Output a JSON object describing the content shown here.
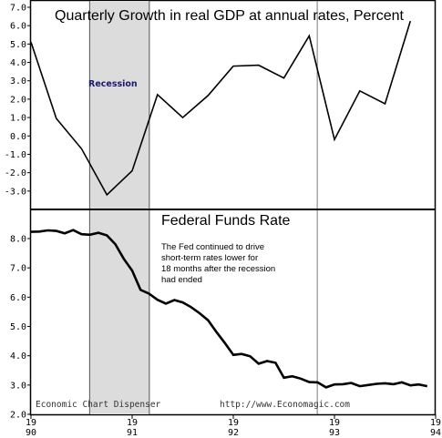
{
  "colors": {
    "recession_shade": "#dcdcdc",
    "recession_label": "#1a1a6e",
    "line": "#000000",
    "frame": "#000000"
  },
  "chart_data": [
    {
      "type": "line",
      "title": "Quarterly Growth in real GDP at annual rates, Percent",
      "ylim": [
        -4.0,
        7.0
      ],
      "yticks": [
        "7.0",
        "6.0",
        "5.0",
        "4.0",
        "3.0",
        "2.0",
        "1.0",
        "0.0",
        "-1.0",
        "-2.0",
        "-3.0"
      ],
      "grid": false,
      "recession_label": "Recession",
      "recession": [
        1990.58,
        1991.17
      ],
      "series": [
        {
          "x": [
            1990.0,
            1990.25,
            1990.5,
            1990.75,
            1991.0,
            1991.25,
            1991.5,
            1991.75,
            1992.0,
            1992.25,
            1992.5,
            1992.75,
            1993.0,
            1993.25,
            1993.5,
            1993.75
          ],
          "y": [
            5.1,
            0.95,
            -0.7,
            -3.2,
            -1.9,
            2.25,
            1.0,
            2.2,
            3.8,
            3.85,
            3.15,
            5.45,
            -0.2,
            2.45,
            1.75,
            6.25
          ]
        }
      ]
    },
    {
      "type": "line",
      "title": "Federal Funds Rate",
      "annotation": [
        "The Fed continued to drive",
        "short-term rates lower for",
        "18 months after the recession",
        "had ended"
      ],
      "ylim": [
        2.0,
        8.5
      ],
      "yticks": [
        "8.0",
        "7.0",
        "6.0",
        "5.0",
        "4.0",
        "3.0",
        "2.0"
      ],
      "grid": false,
      "recession": [
        1990.58,
        1991.17
      ],
      "credit_left": "Economic Chart Dispenser",
      "credit_right": "http://www.Economagic.com",
      "xticks": [
        {
          "value": 1990,
          "century": "19",
          "year": "90"
        },
        {
          "value": 1991,
          "century": "19",
          "year": "91"
        },
        {
          "value": 1992,
          "century": "19",
          "year": "92"
        },
        {
          "value": 1993,
          "century": "19",
          "year": "93"
        },
        {
          "value": 1994,
          "century": "19",
          "year": "94"
        }
      ],
      "series": [
        {
          "x": [
            1990.0,
            1990.083,
            1990.167,
            1990.25,
            1990.333,
            1990.417,
            1990.5,
            1990.583,
            1990.667,
            1990.75,
            1990.833,
            1990.917,
            1991.0,
            1991.083,
            1991.167,
            1991.25,
            1991.333,
            1991.417,
            1991.5,
            1991.583,
            1991.667,
            1991.75,
            1991.833,
            1991.917,
            1992.0,
            1992.083,
            1992.167,
            1992.25,
            1992.333,
            1992.417,
            1992.5,
            1992.583,
            1992.667,
            1992.75,
            1992.833,
            1992.917,
            1993.0,
            1993.083,
            1993.167,
            1993.25,
            1993.333,
            1993.417,
            1993.5,
            1993.583,
            1993.667,
            1993.75,
            1993.833,
            1993.917
          ],
          "y": [
            8.23,
            8.24,
            8.28,
            8.26,
            8.18,
            8.29,
            8.15,
            8.13,
            8.2,
            8.11,
            7.81,
            7.31,
            6.91,
            6.25,
            6.12,
            5.91,
            5.78,
            5.9,
            5.82,
            5.66,
            5.45,
            5.21,
            4.81,
            4.43,
            4.03,
            4.06,
            3.98,
            3.73,
            3.82,
            3.76,
            3.25,
            3.3,
            3.22,
            3.1,
            3.09,
            2.92,
            3.02,
            3.03,
            3.07,
            2.96,
            3.0,
            3.04,
            3.06,
            3.03,
            3.09,
            2.99,
            3.02,
            2.96
          ]
        }
      ]
    }
  ]
}
